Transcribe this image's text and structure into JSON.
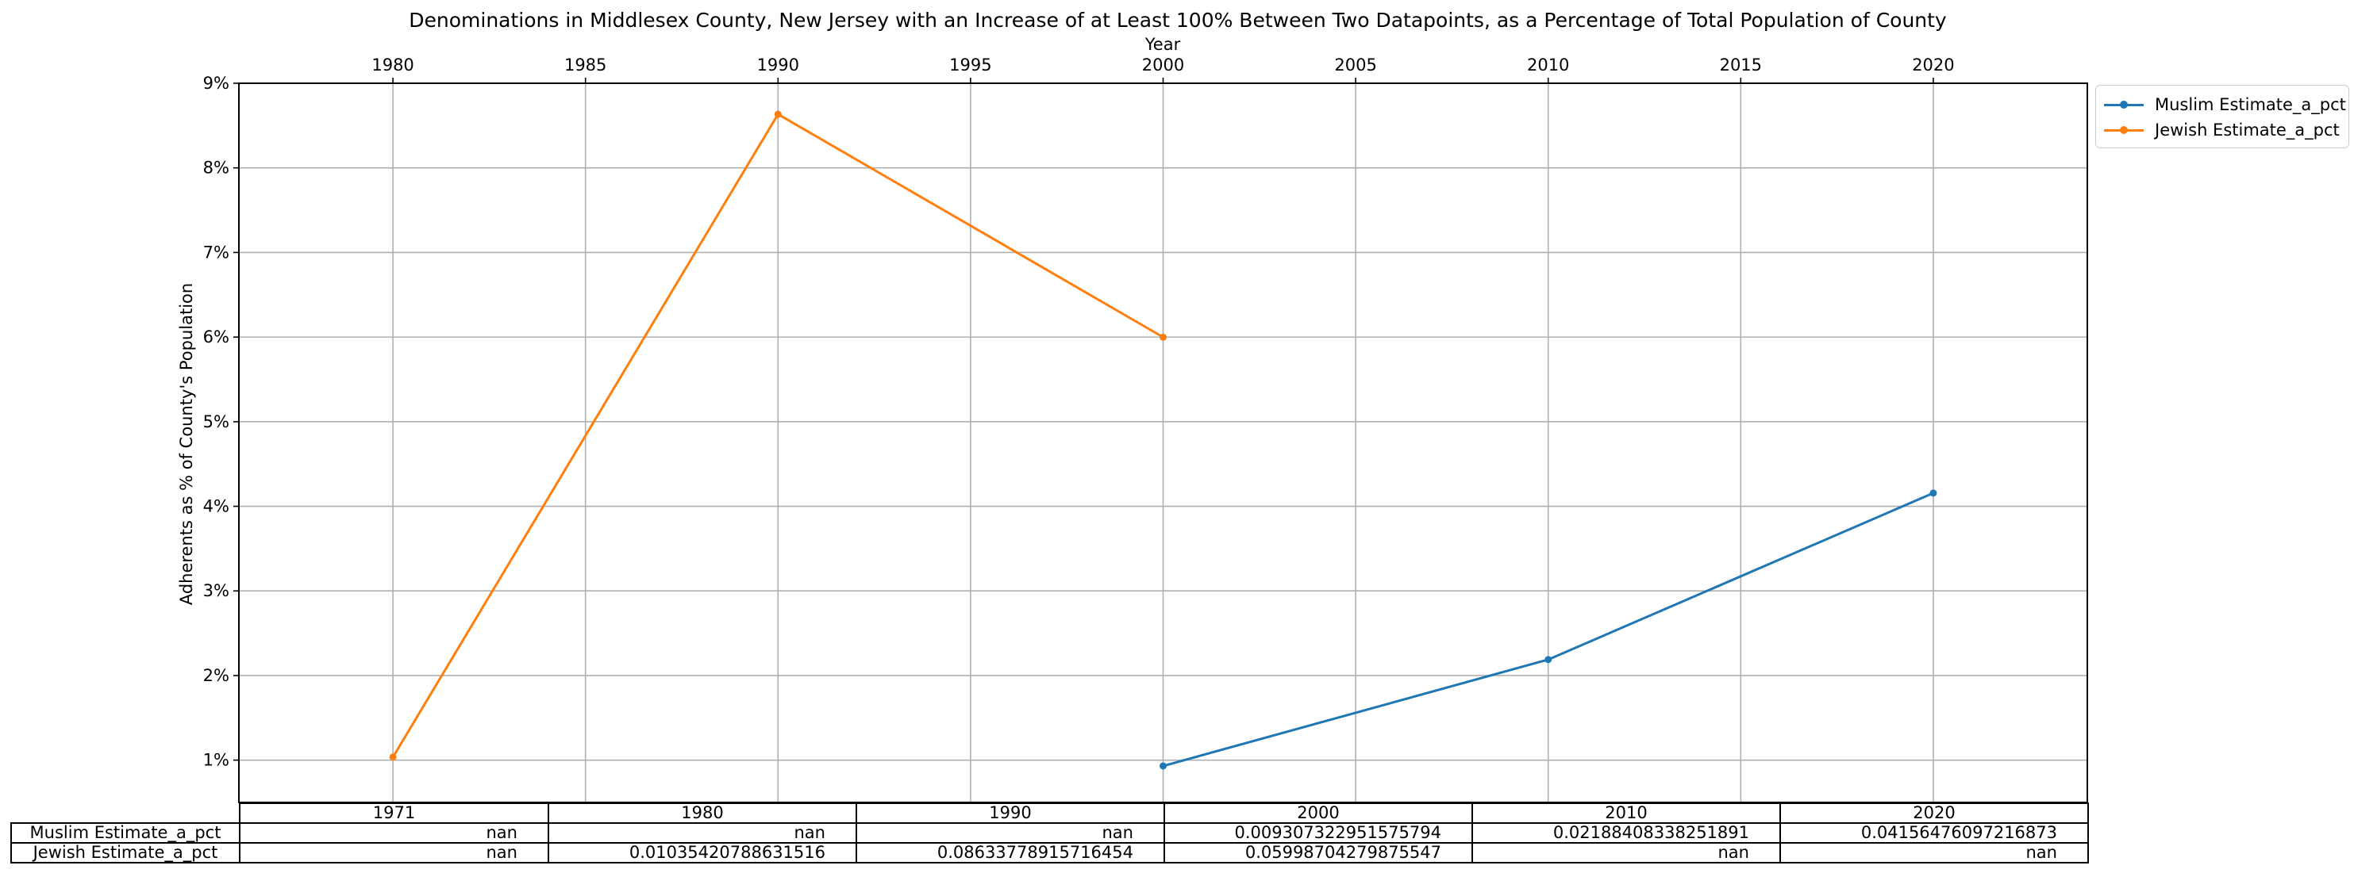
{
  "chart_data": {
    "type": "line",
    "title": "Denominations in Middlesex County, New Jersey with an Increase of at Least 100% Between Two Datapoints, as a Percentage of Total Population of County",
    "xlabel": "Year",
    "ylabel": "Adherents as % of County's Population",
    "xlim": [
      1976,
      2024
    ],
    "ylim": [
      0.5,
      9.0
    ],
    "x_ticks": [
      1980,
      1985,
      1990,
      1995,
      2000,
      2005,
      2010,
      2015,
      2020
    ],
    "y_ticks": [
      1,
      2,
      3,
      4,
      5,
      6,
      7,
      8,
      9
    ],
    "y_tick_labels": [
      "1%",
      "2%",
      "3%",
      "4%",
      "5%",
      "6%",
      "7%",
      "8%",
      "9%"
    ],
    "x_axis_position": "top",
    "grid": true,
    "legend_position": "outside-top-right",
    "series": [
      {
        "name": "Muslim Estimate_a_pct",
        "color": "#1f77b4",
        "x": [
          2000,
          2010,
          2020
        ],
        "y": [
          0.9307322951575794,
          2.188408338251891,
          4.156476097216873
        ]
      },
      {
        "name": "Jewish Estimate_a_pct",
        "color": "#ff7f0e",
        "x": [
          1980,
          1990,
          2000
        ],
        "y": [
          1.035420788631516,
          8.633778915716453,
          5.998704279875547
        ]
      }
    ],
    "table": {
      "columns": [
        "1971",
        "1980",
        "1990",
        "2000",
        "2010",
        "2020"
      ],
      "rows": [
        {
          "label": "Muslim Estimate_a_pct",
          "cells": [
            "nan",
            "nan",
            "nan",
            "0.009307322951575794",
            "0.02188408338251891",
            "0.04156476097216873"
          ]
        },
        {
          "label": "Jewish Estimate_a_pct",
          "cells": [
            "nan",
            "0.01035420788631516",
            "0.08633778915716454",
            "0.05998704279875547",
            "nan",
            "nan"
          ]
        }
      ]
    }
  }
}
